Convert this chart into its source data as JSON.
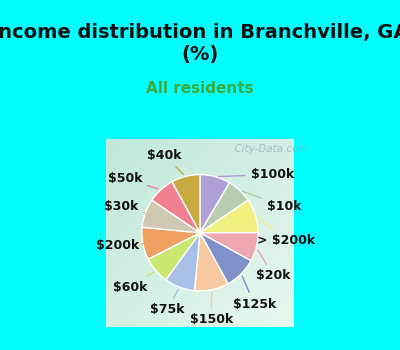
{
  "title": "Income distribution in Branchville, GA\n(%)",
  "subtitle": "All residents",
  "background_top": "#00FFFF",
  "background_chart_tl": "#c8eedd",
  "background_chart_br": "#e8f8f0",
  "labels": [
    "$100k",
    "$10k",
    "> $200k",
    "$20k",
    "$125k",
    "$150k",
    "$75k",
    "$60k",
    "$200k",
    "$30k",
    "$50k",
    "$40k"
  ],
  "values": [
    8.5,
    7.0,
    9.5,
    8.0,
    9.0,
    9.5,
    8.5,
    7.5,
    9.0,
    8.0,
    7.5,
    8.0
  ],
  "colors": [
    "#b0a0d8",
    "#b8ccb0",
    "#f0f080",
    "#f0a8b0",
    "#8090c8",
    "#f8c8a0",
    "#a8c0e8",
    "#c8e870",
    "#f0a060",
    "#d0c8b0",
    "#f08090",
    "#c8aa40"
  ],
  "wedge_linecolor": "white",
  "wedge_linewidth": 1.0,
  "label_fontsize": 9,
  "title_fontsize": 14,
  "subtitle_fontsize": 11,
  "title_color": "#101010",
  "subtitle_color": "#3aaa3a",
  "watermark": "  City-Data.com",
  "line_colors": {
    "$100k": "#b0a0d8",
    "$10k": "#b8ccb0",
    "> $200k": "#f0f080",
    "$20k": "#f0a8b0",
    "$125k": "#8090c8",
    "$150k": "#f8c8a0",
    "$75k": "#a8c0e8",
    "$60k": "#c8e870",
    "$200k": "#f0a060",
    "$30k": "#d0c8b0",
    "$50k": "#f08090",
    "$40k": "#c8aa40"
  }
}
